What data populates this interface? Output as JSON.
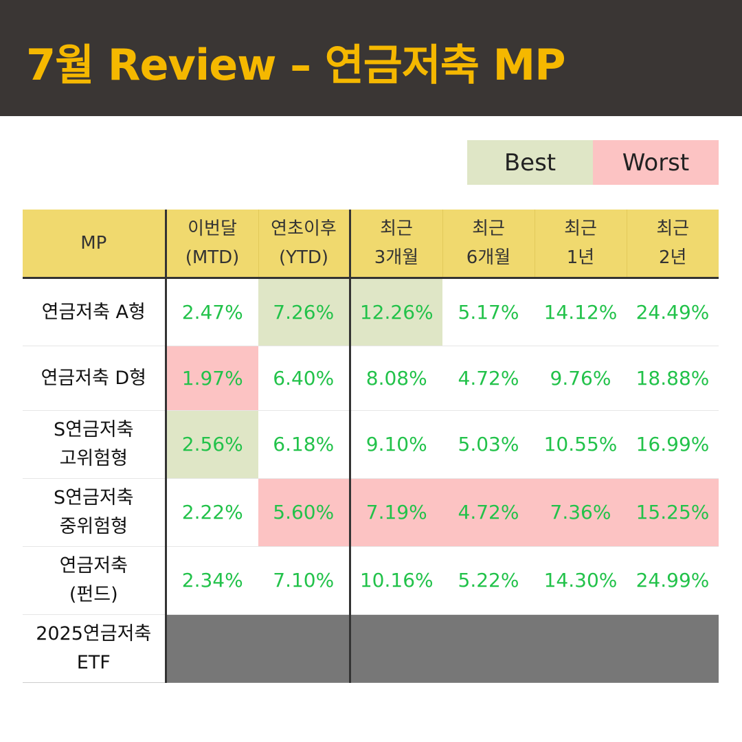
{
  "header": {
    "title": "7월 Review – 연금저축 MP",
    "background": "#3a3634",
    "title_color": "#f5b800"
  },
  "legend": {
    "best_label": "Best",
    "worst_label": "Worst",
    "best_color": "#dfe6c6",
    "worst_color": "#fcc3c3"
  },
  "table": {
    "headers": [
      {
        "line1": "MP",
        "line2": ""
      },
      {
        "line1": "이번달",
        "line2": "(MTD)"
      },
      {
        "line1": "연초이후",
        "line2": "(YTD)"
      },
      {
        "line1": "최근",
        "line2": "3개월"
      },
      {
        "line1": "최근",
        "line2": "6개월"
      },
      {
        "line1": "최근",
        "line2": "1년"
      },
      {
        "line1": "최근",
        "line2": "2년"
      }
    ],
    "rows": [
      {
        "name1": "연금저축 A형",
        "name2": "",
        "values": [
          "2.47%",
          "7.26%",
          "12.26%",
          "5.17%",
          "14.12%",
          "24.49%"
        ],
        "highlight": [
          "",
          "best",
          "best",
          "",
          "",
          ""
        ]
      },
      {
        "name1": "연금저축 D형",
        "name2": "",
        "values": [
          "1.97%",
          "6.40%",
          "8.08%",
          "4.72%",
          "9.76%",
          "18.88%"
        ],
        "highlight": [
          "worst",
          "",
          "",
          "",
          "",
          ""
        ]
      },
      {
        "name1": "S연금저축",
        "name2": "고위험형",
        "values": [
          "2.56%",
          "6.18%",
          "9.10%",
          "5.03%",
          "10.55%",
          "16.99%"
        ],
        "highlight": [
          "best",
          "",
          "",
          "",
          "",
          ""
        ]
      },
      {
        "name1": "S연금저축",
        "name2": "중위험형",
        "values": [
          "2.22%",
          "5.60%",
          "7.19%",
          "4.72%",
          "7.36%",
          "15.25%"
        ],
        "highlight": [
          "",
          "worst",
          "worst",
          "worst",
          "worst",
          "worst"
        ]
      },
      {
        "name1": "연금저축",
        "name2": "(펀드)",
        "values": [
          "2.34%",
          "7.10%",
          "10.16%",
          "5.22%",
          "14.30%",
          "24.99%"
        ],
        "highlight": [
          "",
          "",
          "",
          "",
          "",
          ""
        ]
      },
      {
        "name1": "2025연금저축",
        "name2": "ETF",
        "values": [],
        "highlight": []
      }
    ],
    "value_color": "#22c24a",
    "header_color": "#f0d96e"
  }
}
